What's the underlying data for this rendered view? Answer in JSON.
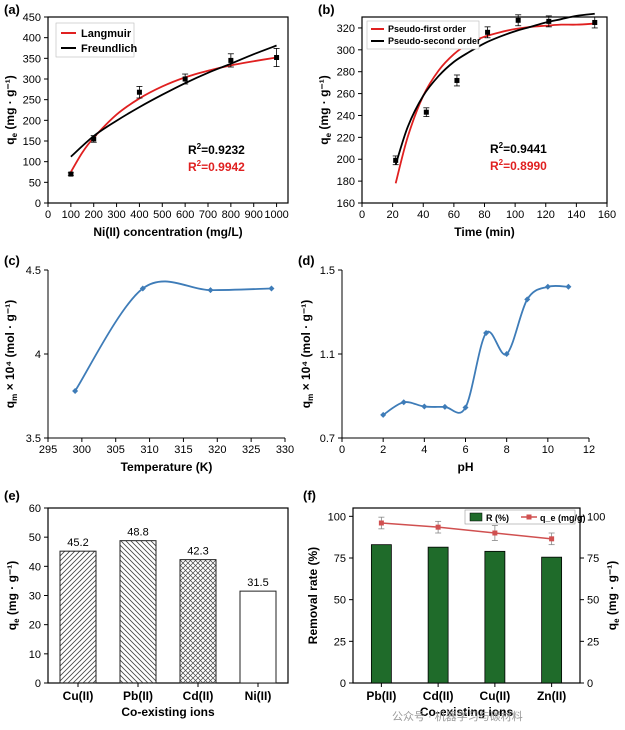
{
  "watermark": "公众号 · 机器学习与碳材料",
  "chart_data": [
    {
      "id": "a",
      "panel": "(a)",
      "type": "scatter",
      "xlabel": "Ni(II) concentration (mg/L)",
      "ylabel": "q_e (mg · g⁻¹)",
      "xlim": [
        0,
        1050
      ],
      "ylim": [
        0,
        450
      ],
      "xticks": [
        0,
        100,
        200,
        300,
        400,
        500,
        600,
        700,
        800,
        900,
        1000
      ],
      "yticks": [
        0,
        50,
        100,
        150,
        200,
        250,
        300,
        350,
        400,
        450
      ],
      "points": {
        "x": [
          100,
          200,
          400,
          600,
          800,
          1000
        ],
        "y": [
          70,
          155,
          268,
          300,
          345,
          352
        ],
        "err": [
          3,
          8,
          14,
          12,
          16,
          22
        ]
      },
      "series": [
        {
          "name": "Langmuir",
          "color": "#e02020",
          "x": [
            100,
            150,
            200,
            300,
            400,
            500,
            600,
            700,
            800,
            900,
            1000
          ],
          "y": [
            75,
            122,
            158,
            214,
            253,
            282,
            304,
            320,
            333,
            343,
            352
          ]
        },
        {
          "name": "Freundlich",
          "color": "#000000",
          "x": [
            100,
            200,
            300,
            400,
            500,
            600,
            700,
            800,
            900,
            1000
          ],
          "y": [
            112,
            162,
            199,
            232,
            262,
            290,
            315,
            337,
            360,
            381
          ]
        }
      ],
      "legend_position": "top-left",
      "annotations": [
        {
          "label": "R",
          "sup": "2",
          "value": "=0.9232",
          "color": "#000000"
        },
        {
          "label": "R",
          "sup": "2",
          "value": "=0.9942",
          "color": "#e02020"
        }
      ]
    },
    {
      "id": "b",
      "panel": "(b)",
      "type": "scatter",
      "xlabel": "Time (min)",
      "ylabel": "q_e (mg · g⁻¹)",
      "xlim": [
        0,
        160
      ],
      "ylim": [
        160,
        330
      ],
      "xticks": [
        0,
        20,
        40,
        60,
        80,
        100,
        120,
        140,
        160
      ],
      "yticks": [
        160,
        180,
        200,
        220,
        240,
        260,
        280,
        300,
        320
      ],
      "points": {
        "x": [
          22,
          42,
          62,
          82,
          102,
          122,
          152
        ],
        "y": [
          199,
          243,
          272,
          316,
          327,
          326,
          325
        ],
        "err": [
          4,
          4,
          5,
          5,
          5,
          5,
          5
        ]
      },
      "series": [
        {
          "name": "Pseudo-first order",
          "color": "#e02020",
          "x": [
            22,
            30,
            40,
            50,
            60,
            70,
            80,
            90,
            100,
            110,
            120,
            130,
            140,
            152
          ],
          "y": [
            178,
            221,
            258,
            281,
            296,
            306,
            312,
            316,
            319,
            321,
            322,
            323,
            323,
            324
          ]
        },
        {
          "name": "Pseudo-second order",
          "color": "#000000",
          "x": [
            22,
            30,
            40,
            50,
            60,
            70,
            80,
            90,
            100,
            110,
            120,
            130,
            140,
            152
          ],
          "y": [
            195,
            230,
            258,
            276,
            289,
            298,
            306,
            312,
            317,
            321,
            325,
            328,
            331,
            333
          ]
        }
      ],
      "legend_position": "top-left",
      "annotations": [
        {
          "label": "R",
          "sup": "2",
          "value": "=0.9441",
          "color": "#000000"
        },
        {
          "label": "R",
          "sup": "2",
          "value": "=0.8990",
          "color": "#e02020"
        }
      ]
    },
    {
      "id": "c",
      "panel": "(c)",
      "type": "line",
      "xlabel": "Temperature (K)",
      "ylabel": "q_m × 10⁴ (mol · g⁻¹)",
      "xlim": [
        295,
        330
      ],
      "ylim": [
        3.5,
        4.5
      ],
      "xticks": [
        295,
        300,
        305,
        310,
        315,
        320,
        325,
        330
      ],
      "yticks": [
        3.5,
        4,
        4.5
      ],
      "ytick_labels": [
        "3.5",
        "4",
        "4.5"
      ],
      "color": "#3e7cb8",
      "x": [
        299,
        309,
        319,
        328
      ],
      "y": [
        3.78,
        4.39,
        4.38,
        4.39
      ]
    },
    {
      "id": "d",
      "panel": "(d)",
      "type": "line",
      "xlabel": "pH",
      "ylabel": "q_m × 10⁴ (mol · g⁻¹)",
      "xlim": [
        0,
        12
      ],
      "ylim": [
        0.7,
        1.5
      ],
      "xticks": [
        0,
        2,
        4,
        6,
        8,
        10,
        12
      ],
      "yticks": [
        0.7,
        1.1,
        1.5
      ],
      "ytick_labels": [
        "0.7",
        "1.1",
        "1.5"
      ],
      "color": "#3e7cb8",
      "x": [
        2,
        3,
        4,
        5,
        6,
        7,
        8,
        9,
        10,
        11
      ],
      "y": [
        0.81,
        0.87,
        0.85,
        0.848,
        0.845,
        1.2,
        1.1,
        1.36,
        1.42,
        1.42
      ]
    },
    {
      "id": "e",
      "panel": "(e)",
      "type": "bar",
      "xlabel": "Co-existing ions",
      "ylabel": "q_e (mg · g⁻¹)",
      "ylim": [
        0,
        60
      ],
      "yticks": [
        0,
        10,
        20,
        30,
        40,
        50,
        60
      ],
      "categories": [
        "Cu(II)",
        "Pb(II)",
        "Cd(II)",
        "Ni(II)"
      ],
      "values": [
        45.2,
        48.8,
        42.3,
        31.5
      ],
      "value_labels": [
        "45.2",
        "48.8",
        "42.3",
        "31.5"
      ],
      "patterns": [
        "diag-right",
        "diag-left",
        "cross",
        "none"
      ]
    },
    {
      "id": "f",
      "panel": "(f)",
      "type": "bar",
      "xlabel": "Co-existing ions",
      "ylabel": "Removal rate (%)",
      "ylabel_right": "q_e (mg · g⁻¹)",
      "ylim": [
        0,
        105
      ],
      "ylim_right": [
        0,
        105
      ],
      "yticks": [
        0,
        25,
        50,
        75,
        100
      ],
      "yticks_right": [
        0,
        25,
        50,
        75,
        100
      ],
      "categories": [
        "Pb(II)",
        "Cd(II)",
        "Cu(II)",
        "Zn(II)"
      ],
      "series": [
        {
          "name": "R (%)",
          "kind": "bar",
          "color": "#1f6b2a",
          "values": [
            83,
            81.5,
            79,
            75.5
          ]
        },
        {
          "name": "q_e (mg/g)",
          "kind": "line",
          "color": "#d05050",
          "values": [
            96,
            93.5,
            90,
            86.5
          ],
          "err": [
            3.5,
            3.5,
            4.5,
            3.5
          ]
        }
      ],
      "legend_position": "top-right"
    }
  ]
}
